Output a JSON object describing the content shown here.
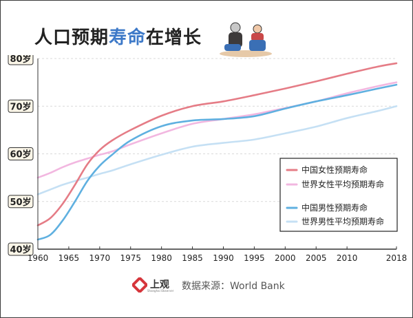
{
  "title": {
    "part1": "人口预期",
    "part2": "寿命",
    "part3": "在增长"
  },
  "footer": {
    "logo_text": "上观",
    "logo_sub": "Shanghai Observer",
    "source": "数据来源：World Bank"
  },
  "colors": {
    "cn_female": "#e57c86",
    "world_female": "#f2b7e0",
    "cn_male": "#5fb0e0",
    "world_male": "#c5e0f4",
    "title_highlight": "#3d79c8",
    "logo": "#d6363c"
  },
  "chart_data": {
    "type": "line",
    "title": "人口预期寿命在增长",
    "xlabel": "",
    "ylabel": "",
    "xlim": [
      1960,
      2018
    ],
    "ylim": [
      40,
      80
    ],
    "x_ticks": [
      1960,
      1965,
      1970,
      1975,
      1980,
      1985,
      1990,
      1995,
      2000,
      2005,
      2010,
      2018
    ],
    "y_ticks": [
      {
        "v": 40,
        "label": "40岁"
      },
      {
        "v": 50,
        "label": "50岁"
      },
      {
        "v": 60,
        "label": "60岁"
      },
      {
        "v": 70,
        "label": "70岁"
      },
      {
        "v": 80,
        "label": "80岁"
      }
    ],
    "grid": "horizontal dashed",
    "legend_position": "right",
    "x": [
      1960,
      1962,
      1964,
      1966,
      1968,
      1970,
      1972,
      1975,
      1980,
      1985,
      1990,
      1995,
      2000,
      2005,
      2010,
      2015,
      2018
    ],
    "series": [
      {
        "name": "中国女性预期寿命",
        "color_key": "cn_female",
        "values": [
          45.0,
          46.5,
          49.5,
          53.5,
          57.8,
          60.8,
          62.8,
          65.0,
          68.0,
          70.0,
          71.0,
          72.3,
          73.7,
          75.2,
          76.8,
          78.3,
          79.0
        ]
      },
      {
        "name": "世界女性平均预期寿命",
        "color_key": "world_female",
        "values": [
          55.0,
          56.0,
          57.2,
          58.2,
          59.0,
          59.8,
          60.5,
          62.0,
          64.3,
          66.3,
          67.3,
          68.3,
          69.6,
          71.0,
          72.7,
          74.2,
          75.0
        ]
      },
      {
        "name": "中国男性预期寿命",
        "color_key": "cn_male",
        "values": [
          42.0,
          43.0,
          46.0,
          50.0,
          54.3,
          57.5,
          59.8,
          62.8,
          65.8,
          67.0,
          67.3,
          67.9,
          69.5,
          71.0,
          72.3,
          73.7,
          74.5
        ]
      },
      {
        "name": "世界男性平均预期寿命",
        "color_key": "world_male",
        "values": [
          51.5,
          52.5,
          53.5,
          54.3,
          55.0,
          55.8,
          56.5,
          57.8,
          59.8,
          61.5,
          62.3,
          63.0,
          64.3,
          65.7,
          67.5,
          69.0,
          70.0
        ]
      }
    ]
  }
}
